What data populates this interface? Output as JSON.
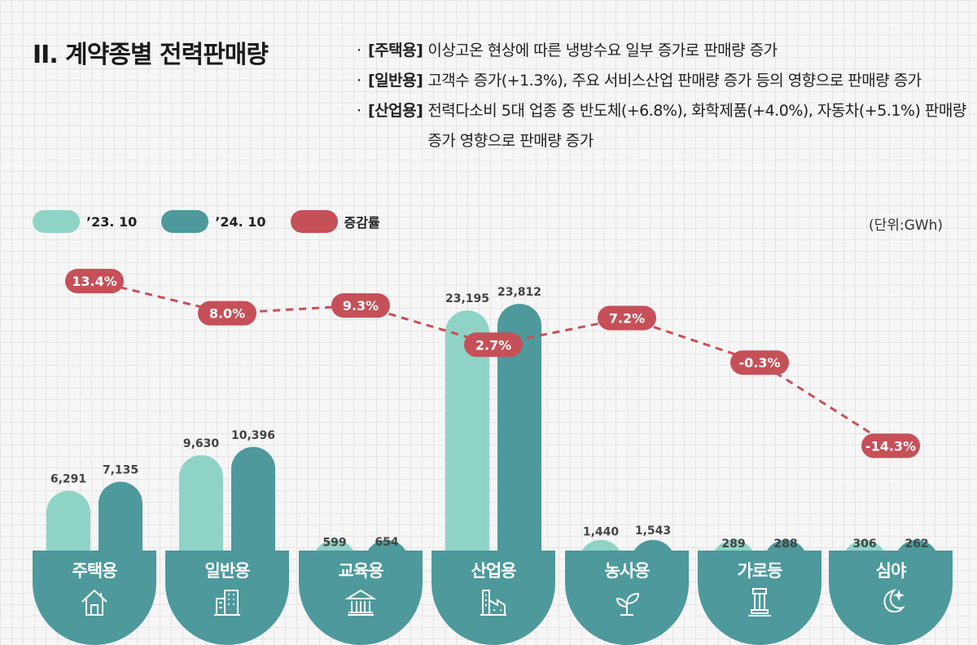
{
  "header": {
    "title": "II. 계약종별 전력판매량"
  },
  "notes": [
    {
      "bullet": "·",
      "tag": "[주택용]",
      "text": "이상고온 현상에 따른 냉방수요 일부 증가로 판매량 증가"
    },
    {
      "bullet": "·",
      "tag": "[일반용]",
      "text": "고객수 증가(+1.3%), 주요 서비스산업 판매량 증가 등의 영향으로 판매량 증가"
    },
    {
      "bullet": "·",
      "tag": "[산업용]",
      "text": "전력다소비 5대 업종 중 반도체(+6.8%), 화학제품(+4.0%), 자동차(+5.1%) 판매량 증가 영향으로 판매량 증가"
    }
  ],
  "legend": [
    {
      "label": "’23. 10",
      "color": "#8fd3c7"
    },
    {
      "label": "’24. 10",
      "color": "#4d999c"
    },
    {
      "label": "증감률",
      "color": "#c65058"
    }
  ],
  "unit": "(단위:GWh)",
  "categories": [
    {
      "name": "주택용",
      "icon": "house-icon"
    },
    {
      "name": "일반용",
      "icon": "office-building-icon"
    },
    {
      "name": "교육용",
      "icon": "school-building-icon"
    },
    {
      "name": "산업용",
      "icon": "factory-icon"
    },
    {
      "name": "농사용",
      "icon": "sprout-icon"
    },
    {
      "name": "가로등",
      "icon": "streetlight-icon"
    },
    {
      "name": "심야",
      "icon": "moon-icon"
    }
  ],
  "chart_data": {
    "type": "bar",
    "title": "II. 계약종별 전력판매량",
    "unit": "GWh",
    "categories": [
      "주택용",
      "일반용",
      "교육용",
      "산업용",
      "농사용",
      "가로등",
      "심야"
    ],
    "series": [
      {
        "name": "’23. 10",
        "values": [
          6291,
          9630,
          599,
          23195,
          1440,
          289,
          306
        ],
        "labels": [
          "6,291",
          "9,630",
          "599",
          "23,195",
          "1,440",
          "289",
          "306"
        ],
        "color": "#8fd3c7"
      },
      {
        "name": "’24. 10",
        "values": [
          7135,
          10396,
          654,
          23812,
          1543,
          288,
          262
        ],
        "labels": [
          "7,135",
          "10,396",
          "654",
          "23,812",
          "1,543",
          "288",
          "262"
        ],
        "color": "#4d999c"
      }
    ],
    "line": {
      "name": "증감률",
      "values": [
        13.4,
        8.0,
        9.3,
        2.7,
        7.2,
        -0.3,
        -14.3
      ],
      "labels": [
        "13.4%",
        "8.0%",
        "9.3%",
        "2.7%",
        "7.2%",
        "-0.3%",
        "-14.3%"
      ],
      "color": "#c65058"
    },
    "xlabel": "",
    "ylabel": "",
    "legend": "top-left"
  }
}
